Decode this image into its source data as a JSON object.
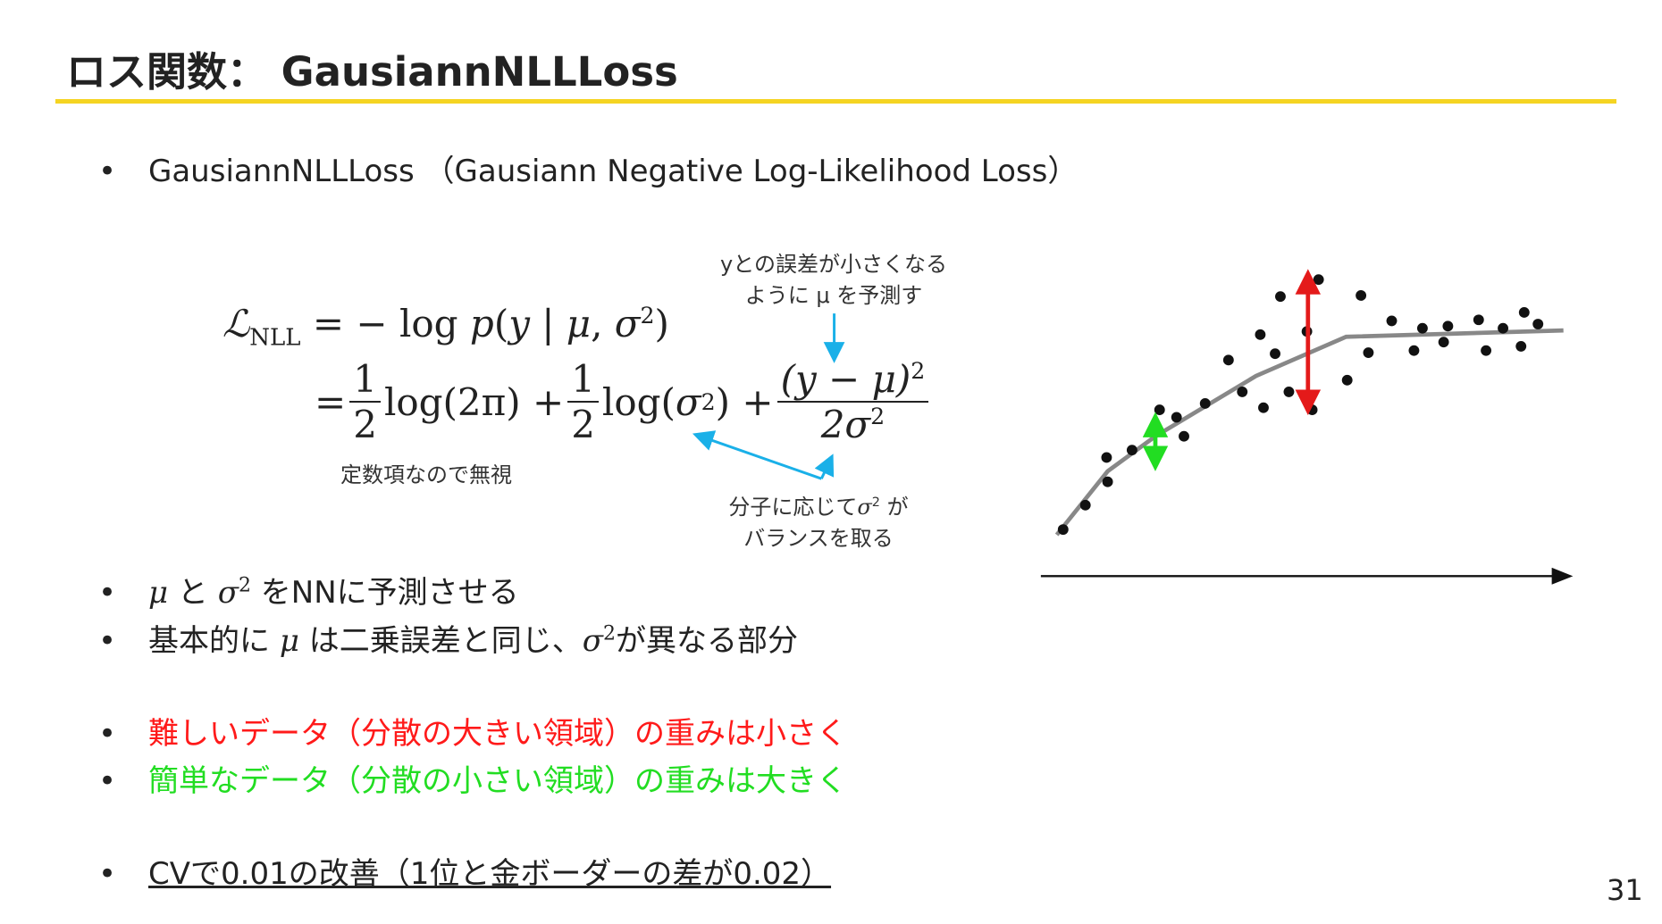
{
  "title": "ロス関数： GausiannNLLLoss",
  "bullets": [
    [
      "GausiannNLLLoss （Gausiann Negative Log-Likelihood Loss）"
    ],
    [
      "μ",
      " と ",
      "σ",
      "2",
      " をNNに予測させる"
    ],
    [
      "基本的に ",
      "μ",
      " は二乗誤差と同じ、",
      "σ",
      "2",
      "が異なる部分"
    ],
    [
      "難しいデータ（分散の大きい領域）の重みは小さく"
    ],
    [
      "簡単なデータ（分散の小さい領域）の重みは大きく"
    ],
    [
      "CVで0.01の改善（1位と金ボーダーの差が0.02）"
    ]
  ],
  "formula": {
    "line1": [
      "ℒ",
      "NLL",
      " = − log ",
      "p",
      "(",
      "y",
      " | ",
      "μ",
      ", ",
      "σ",
      "2",
      ")"
    ],
    "line2": [
      "=",
      "1",
      "2",
      " log(2π) + ",
      "1",
      "2",
      " log(",
      "σ",
      "2",
      ") + ",
      "(y − μ)",
      "2",
      "2σ",
      "2"
    ]
  },
  "annotations": {
    "mu": [
      "yとの誤差が小さくなる",
      "ように μ を予測す"
    ],
    "const": "定数項なので無視",
    "sigma": [
      "分子に応じて",
      "σ",
      "2",
      " が",
      "バランスを取る"
    ]
  },
  "page_number": "31"
}
